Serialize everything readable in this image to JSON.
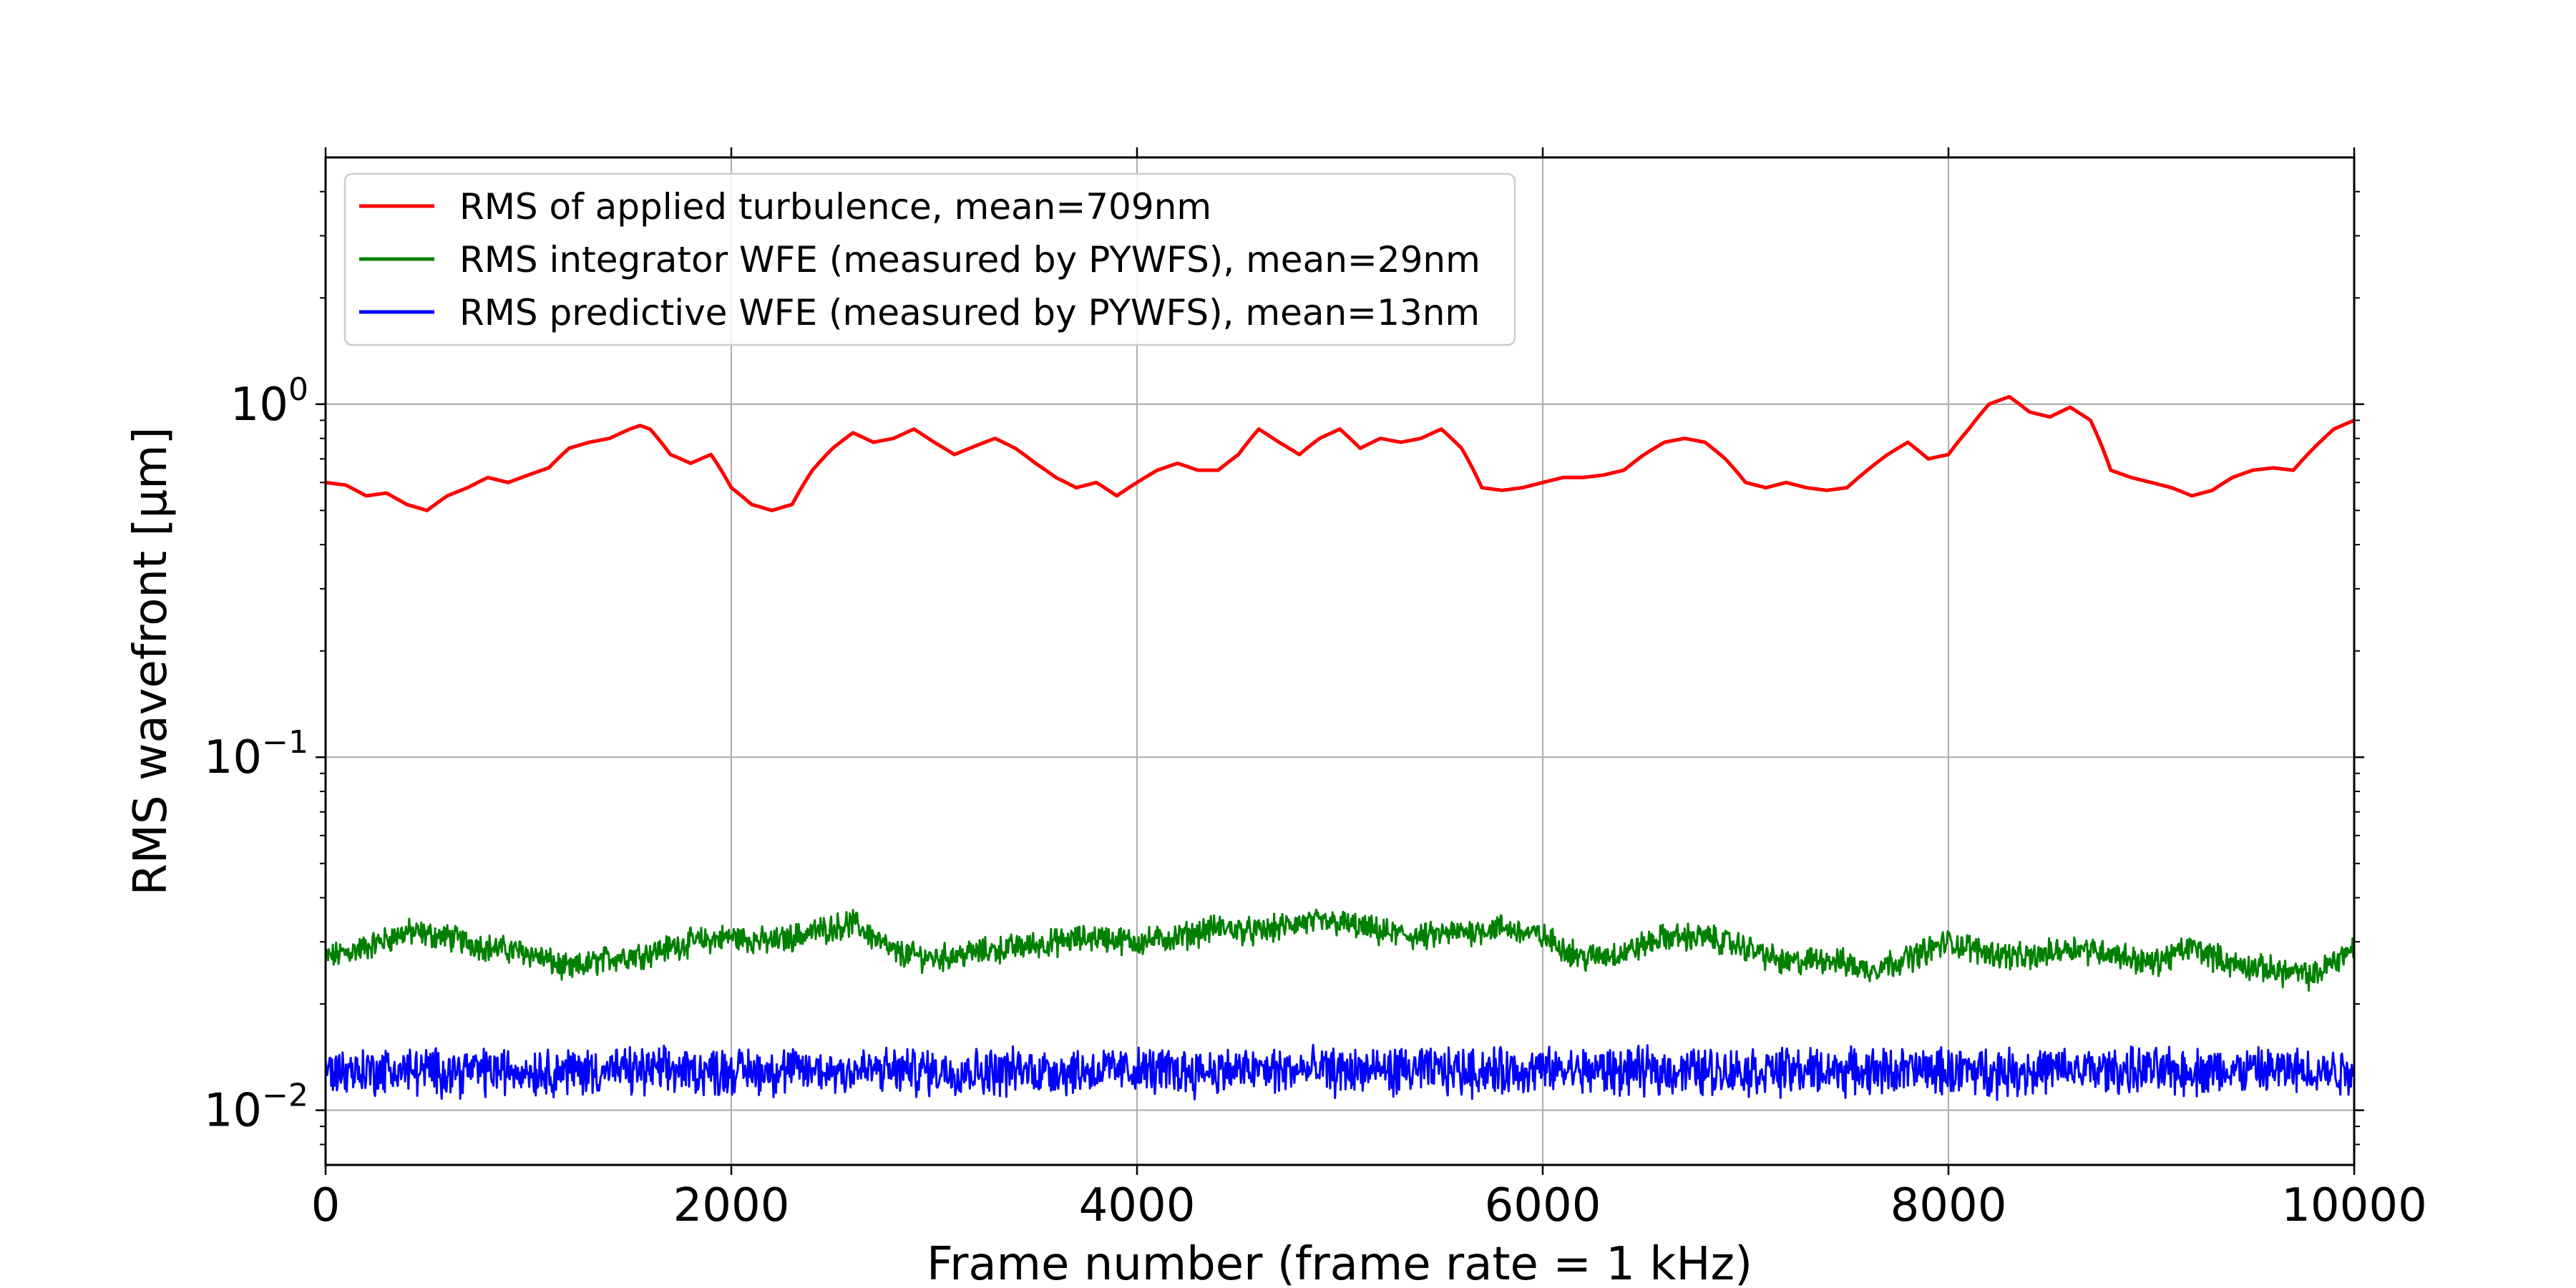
{
  "chart_data": {
    "type": "line",
    "title": "",
    "xlabel": "Frame number (frame rate = 1 kHz)",
    "ylabel": "RMS wavefront [μm]",
    "xlim": [
      0,
      10000
    ],
    "ylim": [
      0.007,
      5.0
    ],
    "yscale": "log",
    "grid": true,
    "legend_position": "top-left",
    "x_ticks": [
      0,
      2000,
      4000,
      6000,
      8000,
      10000
    ],
    "x_tick_labels": [
      "0",
      "2000",
      "4000",
      "6000",
      "8000",
      "10000"
    ],
    "y_ticks": [
      0.01,
      0.1,
      1.0
    ],
    "y_tick_labels": [
      {
        "base": "10",
        "exp": "−2"
      },
      {
        "base": "10",
        "exp": "−1"
      },
      {
        "base": "10",
        "exp": "0"
      }
    ],
    "series": [
      {
        "name": "RMS of applied turbulence, mean=709nm",
        "color": "#ff0000",
        "x": [
          0,
          100,
          200,
          300,
          400,
          500,
          600,
          700,
          800,
          900,
          1000,
          1100,
          1200,
          1300,
          1400,
          1500,
          1550,
          1600,
          1700,
          1800,
          1900,
          2000,
          2100,
          2200,
          2300,
          2400,
          2500,
          2600,
          2700,
          2800,
          2900,
          3000,
          3100,
          3200,
          3300,
          3400,
          3500,
          3600,
          3700,
          3800,
          3900,
          4000,
          4100,
          4200,
          4300,
          4400,
          4500,
          4600,
          4700,
          4800,
          4900,
          5000,
          5100,
          5200,
          5300,
          5400,
          5500,
          5600,
          5700,
          5800,
          5900,
          6000,
          6100,
          6200,
          6300,
          6400,
          6500,
          6600,
          6700,
          6800,
          6900,
          7000,
          7100,
          7200,
          7300,
          7400,
          7500,
          7600,
          7700,
          7800,
          7900,
          8000,
          8100,
          8200,
          8300,
          8400,
          8500,
          8600,
          8700,
          8800,
          8900,
          9000,
          9100,
          9200,
          9300,
          9400,
          9500,
          9600,
          9700,
          9800,
          9900,
          10000
        ],
        "y": [
          0.6,
          0.59,
          0.55,
          0.56,
          0.52,
          0.5,
          0.55,
          0.58,
          0.62,
          0.6,
          0.63,
          0.66,
          0.75,
          0.78,
          0.8,
          0.85,
          0.87,
          0.85,
          0.72,
          0.68,
          0.72,
          0.58,
          0.52,
          0.5,
          0.52,
          0.65,
          0.75,
          0.83,
          0.78,
          0.8,
          0.85,
          0.78,
          0.72,
          0.76,
          0.8,
          0.75,
          0.68,
          0.62,
          0.58,
          0.6,
          0.55,
          0.6,
          0.65,
          0.68,
          0.65,
          0.65,
          0.72,
          0.85,
          0.78,
          0.72,
          0.8,
          0.85,
          0.75,
          0.8,
          0.78,
          0.8,
          0.85,
          0.75,
          0.58,
          0.57,
          0.58,
          0.6,
          0.62,
          0.62,
          0.63,
          0.65,
          0.72,
          0.78,
          0.8,
          0.78,
          0.7,
          0.6,
          0.58,
          0.6,
          0.58,
          0.57,
          0.58,
          0.65,
          0.72,
          0.78,
          0.7,
          0.72,
          0.85,
          1.0,
          1.05,
          0.95,
          0.92,
          0.98,
          0.9,
          0.65,
          0.62,
          0.6,
          0.58,
          0.55,
          0.57,
          0.62,
          0.65,
          0.66,
          0.65,
          0.75,
          0.85,
          0.9
        ]
      },
      {
        "name": "RMS integrator WFE (measured by PYWFS), mean=29nm",
        "color": "#008000",
        "x": [
          0,
          200,
          400,
          600,
          800,
          1000,
          1200,
          1400,
          1600,
          1800,
          2000,
          2200,
          2400,
          2600,
          2800,
          3000,
          3200,
          3400,
          3600,
          3800,
          4000,
          4200,
          4400,
          4600,
          4800,
          5000,
          5200,
          5400,
          5600,
          5800,
          6000,
          6200,
          6400,
          6600,
          6800,
          7000,
          7200,
          7400,
          7600,
          7800,
          8000,
          8200,
          8400,
          8600,
          8800,
          9000,
          9200,
          9400,
          9600,
          9800,
          10000
        ],
        "y": [
          0.027,
          0.029,
          0.032,
          0.031,
          0.029,
          0.028,
          0.025,
          0.027,
          0.028,
          0.03,
          0.031,
          0.03,
          0.032,
          0.034,
          0.028,
          0.027,
          0.028,
          0.029,
          0.03,
          0.031,
          0.03,
          0.031,
          0.033,
          0.032,
          0.034,
          0.034,
          0.032,
          0.031,
          0.032,
          0.033,
          0.031,
          0.027,
          0.028,
          0.031,
          0.031,
          0.029,
          0.026,
          0.027,
          0.025,
          0.027,
          0.03,
          0.028,
          0.027,
          0.029,
          0.028,
          0.026,
          0.029,
          0.026,
          0.025,
          0.024,
          0.029
        ],
        "noise_amplitude": 0.07
      },
      {
        "name": "RMS predictive WFE (measured by PYWFS), mean=13nm",
        "color": "#0000ff",
        "x": [
          0,
          1000,
          2000,
          3000,
          4000,
          5000,
          6000,
          7000,
          8000,
          9000,
          10000
        ],
        "y": [
          0.013,
          0.013,
          0.013,
          0.013,
          0.013,
          0.013,
          0.013,
          0.013,
          0.013,
          0.013,
          0.013
        ],
        "noise_amplitude": 0.12
      }
    ]
  }
}
